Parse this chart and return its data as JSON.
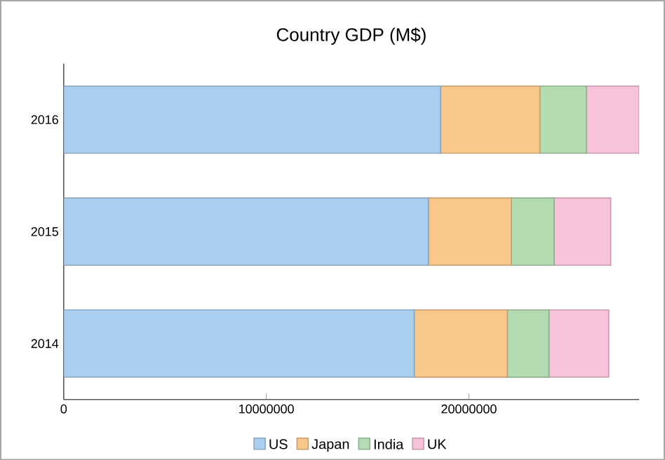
{
  "chart_data": {
    "type": "bar",
    "orientation": "horizontal",
    "stacked": true,
    "title": "Country GDP (M$)",
    "categories": [
      "2016",
      "2015",
      "2014"
    ],
    "series": [
      {
        "name": "US",
        "color": "#abcfee",
        "values": [
          18600000,
          18000000,
          17300000
        ]
      },
      {
        "name": "Japan",
        "color": "#fac78a",
        "values": [
          4900000,
          4100000,
          4600000
        ]
      },
      {
        "name": "India",
        "color": "#b3dcb3",
        "values": [
          2300000,
          2100000,
          2050000
        ]
      },
      {
        "name": "UK",
        "color": "#f7c2da",
        "values": [
          2600000,
          2800000,
          2950000
        ]
      }
    ],
    "xlim": [
      0,
      28400000
    ],
    "xticks": [
      0,
      10000000,
      20000000
    ],
    "grid": false,
    "legend": "bottom"
  }
}
